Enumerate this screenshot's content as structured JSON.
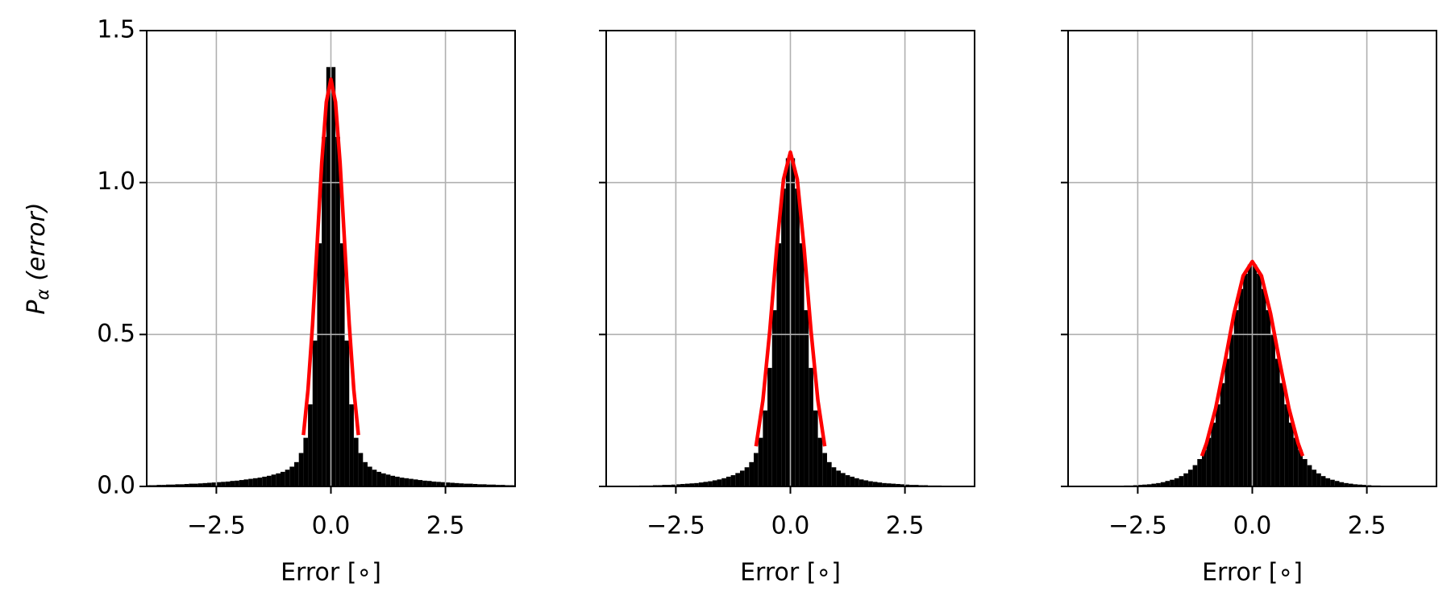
{
  "chart_data": [
    {
      "type": "histogram",
      "color": "#000000",
      "grid": true,
      "ytick_labels": true,
      "ylabel": {
        "main": "P",
        "sub": "α",
        "rest": "(error)"
      },
      "xlabel": "Error [∘]",
      "xlim": [
        -4.02,
        4.02
      ],
      "ylim": [
        0,
        1.5
      ],
      "xticks": [
        {
          "value": -2.5,
          "label": "−2.5"
        },
        {
          "value": 0,
          "label": "0.0"
        },
        2.5
      ],
      "yticks": [
        {
          "value": 0,
          "label": "0.0"
        },
        0.5,
        {
          "value": 1,
          "label": "1.0"
        },
        1.5
      ],
      "bins": [
        -4.0,
        -3.9,
        -3.8,
        -3.7,
        -3.6,
        -3.5,
        -3.4,
        -3.3,
        -3.2,
        -3.1,
        -3.0,
        -2.9,
        -2.8,
        -2.7,
        -2.6,
        -2.5,
        -2.4,
        -2.3,
        -2.2,
        -2.1,
        -2.0,
        -1.9,
        -1.8,
        -1.7,
        -1.6,
        -1.5,
        -1.4,
        -1.3,
        -1.2,
        -1.1,
        -1.0,
        -0.9,
        -0.8,
        -0.7,
        -0.6,
        -0.5,
        -0.4,
        -0.3,
        -0.2,
        -0.1,
        0.0,
        0.1,
        0.2,
        0.3,
        0.4,
        0.5,
        0.6,
        0.7,
        0.8,
        0.9,
        1.0,
        1.1,
        1.2,
        1.3,
        1.4,
        1.5,
        1.6,
        1.7,
        1.8,
        1.9,
        2.0,
        2.1,
        2.2,
        2.3,
        2.4,
        2.5,
        2.6,
        2.7,
        2.8,
        2.9,
        3.0,
        3.1,
        3.2,
        3.3,
        3.4,
        3.5,
        3.6,
        3.7,
        3.8,
        3.9,
        4.0
      ],
      "counts": [
        0.004,
        0.004,
        0.005,
        0.005,
        0.006,
        0.006,
        0.007,
        0.007,
        0.008,
        0.009,
        0.009,
        0.01,
        0.011,
        0.012,
        0.013,
        0.014,
        0.015,
        0.016,
        0.018,
        0.019,
        0.021,
        0.023,
        0.025,
        0.027,
        0.029,
        0.032,
        0.035,
        0.039,
        0.043,
        0.048,
        0.055,
        0.065,
        0.08,
        0.11,
        0.16,
        0.27,
        0.48,
        0.8,
        1.15,
        1.38,
        1.38,
        1.15,
        0.8,
        0.48,
        0.27,
        0.16,
        0.11,
        0.08,
        0.065,
        0.055,
        0.048,
        0.043,
        0.039,
        0.035,
        0.032,
        0.029,
        0.027,
        0.025,
        0.023,
        0.021,
        0.019,
        0.018,
        0.016,
        0.015,
        0.014,
        0.013,
        0.012,
        0.011,
        0.01,
        0.009,
        0.009,
        0.008,
        0.007,
        0.007,
        0.006,
        0.006,
        0.005,
        0.005,
        0.004,
        0.004
      ],
      "fit": {
        "color": "#ff0000",
        "x": [
          -0.6,
          -0.5,
          -0.4,
          -0.3,
          -0.2,
          -0.1,
          0,
          0.1,
          0.2,
          0.3,
          0.4,
          0.5,
          0.6
        ],
        "values": [
          0.169,
          0.318,
          0.534,
          0.799,
          1.065,
          1.265,
          1.34,
          1.265,
          1.065,
          0.799,
          0.534,
          0.318,
          0.169
        ]
      }
    },
    {
      "type": "histogram",
      "color": "#000000",
      "grid": true,
      "ytick_labels": false,
      "xlabel": "Error [∘]",
      "xlim": [
        -4.02,
        4.02
      ],
      "ylim": [
        0,
        1.5
      ],
      "xticks": [
        {
          "value": -2.5,
          "label": "−2.5"
        },
        {
          "value": 0,
          "label": "0.0"
        },
        2.5
      ],
      "yticks": [
        0,
        0.5,
        1,
        1.5
      ],
      "bins": [
        -4.0,
        -3.9,
        -3.8,
        -3.7,
        -3.6,
        -3.5,
        -3.4,
        -3.3,
        -3.2,
        -3.1,
        -3.0,
        -2.9,
        -2.8,
        -2.7,
        -2.6,
        -2.5,
        -2.4,
        -2.3,
        -2.2,
        -2.1,
        -2.0,
        -1.9,
        -1.8,
        -1.7,
        -1.6,
        -1.5,
        -1.4,
        -1.3,
        -1.2,
        -1.1,
        -1.0,
        -0.9,
        -0.8,
        -0.7,
        -0.6,
        -0.5,
        -0.4,
        -0.3,
        -0.2,
        -0.1,
        0.0,
        0.1,
        0.2,
        0.3,
        0.4,
        0.5,
        0.6,
        0.7,
        0.8,
        0.9,
        1.0,
        1.1,
        1.2,
        1.3,
        1.4,
        1.5,
        1.6,
        1.7,
        1.8,
        1.9,
        2.0,
        2.1,
        2.2,
        2.3,
        2.4,
        2.5,
        2.6,
        2.7,
        2.8,
        2.9,
        3.0,
        3.1,
        3.2,
        3.3,
        3.4,
        3.5,
        3.6,
        3.7,
        3.8,
        3.9,
        4.0
      ],
      "counts": [
        0.001,
        0.001,
        0.002,
        0.002,
        0.002,
        0.002,
        0.002,
        0.003,
        0.003,
        0.003,
        0.004,
        0.004,
        0.005,
        0.005,
        0.006,
        0.007,
        0.008,
        0.009,
        0.01,
        0.011,
        0.013,
        0.015,
        0.017,
        0.02,
        0.023,
        0.027,
        0.032,
        0.037,
        0.044,
        0.052,
        0.063,
        0.08,
        0.11,
        0.16,
        0.25,
        0.39,
        0.58,
        0.8,
        0.98,
        1.08,
        1.08,
        0.98,
        0.8,
        0.58,
        0.39,
        0.25,
        0.16,
        0.11,
        0.08,
        0.063,
        0.052,
        0.044,
        0.037,
        0.032,
        0.027,
        0.023,
        0.02,
        0.017,
        0.015,
        0.013,
        0.011,
        0.01,
        0.009,
        0.008,
        0.007,
        0.006,
        0.005,
        0.005,
        0.004,
        0.004,
        0.003,
        0.003,
        0.003,
        0.002,
        0.002,
        0.002,
        0.002,
        0.002,
        0.001,
        0.001
      ],
      "fit": {
        "color": "#ff0000",
        "x": [
          -0.75,
          -0.6,
          -0.45,
          -0.3,
          -0.15,
          0,
          0.15,
          0.3,
          0.45,
          0.6,
          0.75
        ],
        "values": [
          0.132,
          0.283,
          0.512,
          0.783,
          1.011,
          1.1,
          1.011,
          0.783,
          0.512,
          0.283,
          0.132
        ]
      }
    },
    {
      "type": "histogram",
      "color": "#000000",
      "grid": true,
      "ytick_labels": false,
      "xlabel": "Error [∘]",
      "xlim": [
        -4.02,
        4.02
      ],
      "ylim": [
        0,
        1.5
      ],
      "xticks": [
        {
          "value": -2.5,
          "label": "−2.5"
        },
        {
          "value": 0,
          "label": "0.0"
        },
        2.5
      ],
      "yticks": [
        0,
        0.5,
        1,
        1.5
      ],
      "bins": [
        -4.0,
        -3.9,
        -3.8,
        -3.7,
        -3.6,
        -3.5,
        -3.4,
        -3.3,
        -3.2,
        -3.1,
        -3.0,
        -2.9,
        -2.8,
        -2.7,
        -2.6,
        -2.5,
        -2.4,
        -2.3,
        -2.2,
        -2.1,
        -2.0,
        -1.9,
        -1.8,
        -1.7,
        -1.6,
        -1.5,
        -1.4,
        -1.3,
        -1.2,
        -1.1,
        -1.0,
        -0.9,
        -0.8,
        -0.7,
        -0.6,
        -0.5,
        -0.4,
        -0.3,
        -0.2,
        -0.1,
        0.0,
        0.1,
        0.2,
        0.3,
        0.4,
        0.5,
        0.6,
        0.7,
        0.8,
        0.9,
        1.0,
        1.1,
        1.2,
        1.3,
        1.4,
        1.5,
        1.6,
        1.7,
        1.8,
        1.9,
        2.0,
        2.1,
        2.2,
        2.3,
        2.4,
        2.5,
        2.6,
        2.7,
        2.8,
        2.9,
        3.0,
        3.1,
        3.2,
        3.3,
        3.4,
        3.5,
        3.6,
        3.7,
        3.8,
        3.9,
        4.0
      ],
      "counts": [
        0.001,
        0.001,
        0.001,
        0.001,
        0.001,
        0.001,
        0.001,
        0.001,
        0.001,
        0.002,
        0.002,
        0.002,
        0.003,
        0.003,
        0.004,
        0.005,
        0.006,
        0.007,
        0.009,
        0.011,
        0.014,
        0.018,
        0.022,
        0.027,
        0.034,
        0.043,
        0.055,
        0.07,
        0.09,
        0.12,
        0.16,
        0.21,
        0.27,
        0.34,
        0.42,
        0.5,
        0.58,
        0.65,
        0.7,
        0.73,
        0.73,
        0.7,
        0.65,
        0.58,
        0.5,
        0.42,
        0.34,
        0.27,
        0.21,
        0.16,
        0.12,
        0.09,
        0.07,
        0.055,
        0.043,
        0.034,
        0.027,
        0.022,
        0.018,
        0.014,
        0.011,
        0.009,
        0.007,
        0.006,
        0.005,
        0.004,
        0.003,
        0.003,
        0.002,
        0.002,
        0.002,
        0.001,
        0.001,
        0.001,
        0.001,
        0.001,
        0.001,
        0.001,
        0.001,
        0.001
      ],
      "fit": {
        "color": "#ff0000",
        "x": [
          -1.1,
          -1.0,
          -0.8,
          -0.6,
          -0.4,
          -0.2,
          0,
          0.2,
          0.4,
          0.6,
          0.8,
          1.0,
          1.1
        ],
        "values": [
          0.1,
          0.142,
          0.257,
          0.408,
          0.568,
          0.693,
          0.74,
          0.693,
          0.568,
          0.408,
          0.257,
          0.142,
          0.1
        ]
      }
    }
  ]
}
